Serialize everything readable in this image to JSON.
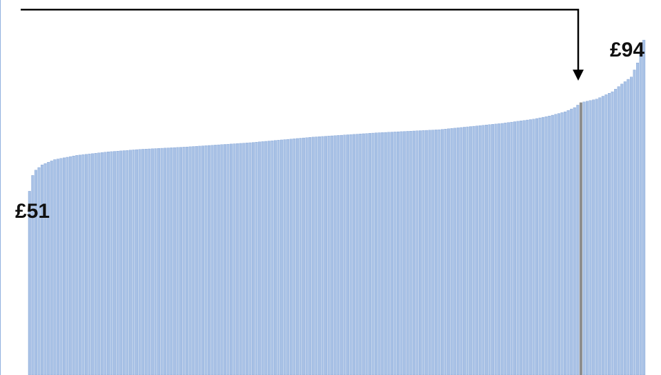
{
  "chart_data": {
    "type": "bar",
    "title": "",
    "xlabel": "",
    "ylabel": "",
    "sorted": "ascending",
    "count": 196,
    "min_value": 51,
    "max_value": 94,
    "min_label": "£51",
    "max_label": "£94",
    "highlight_index": 175,
    "anchors": [
      [
        0,
        51
      ],
      [
        1,
        55.5
      ],
      [
        2,
        57
      ],
      [
        4,
        58.5
      ],
      [
        8,
        60
      ],
      [
        15,
        61.2
      ],
      [
        25,
        62.2
      ],
      [
        35,
        62.9
      ],
      [
        50,
        63.6
      ],
      [
        70,
        64.8
      ],
      [
        90,
        66.4
      ],
      [
        110,
        67.6
      ],
      [
        130,
        68.5
      ],
      [
        150,
        70.3
      ],
      [
        160,
        71.5
      ],
      [
        165,
        72.4
      ],
      [
        170,
        73.6
      ],
      [
        173,
        74.8
      ],
      [
        175,
        76.2
      ],
      [
        180,
        77.2
      ],
      [
        185,
        79.3
      ],
      [
        188,
        81.5
      ],
      [
        191,
        83.5
      ],
      [
        193,
        87.5
      ],
      [
        195,
        94
      ]
    ],
    "colors": {
      "bar": "#a9c2e6",
      "bar_edge": "#7ea0d4",
      "highlight_bar": "#8c8c8c",
      "arrow": "#000000",
      "label": "#111111"
    }
  }
}
